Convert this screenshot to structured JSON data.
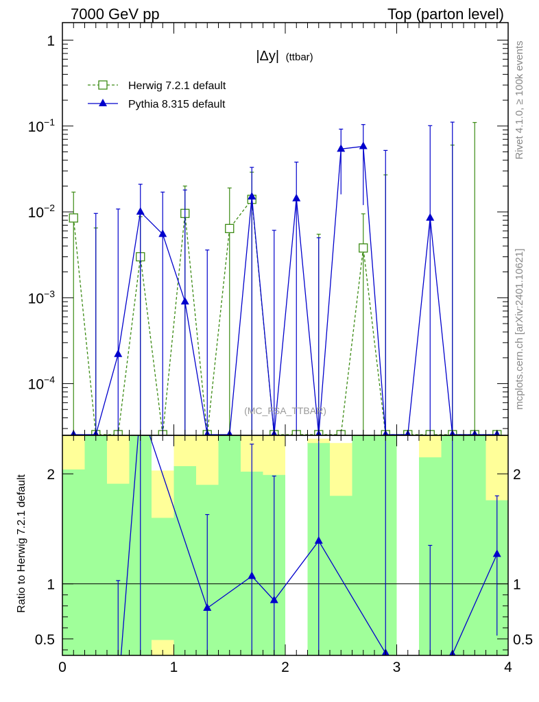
{
  "header": {
    "left": "7000 GeV pp",
    "right": "Top (parton level)"
  },
  "side_labels": {
    "rivet": "Rivet 4.1.0, ≥ 100k events",
    "mcplots": "mcplots.cern.ch [arXiv:2401.10621]"
  },
  "chart_data": [
    {
      "type": "line",
      "panel": "main",
      "title": "|Δy|",
      "title_suffix": "(ttbar)",
      "analysis_tag": "(MC_FSA_TTBAR)",
      "yscale": "log",
      "xlim": [
        0,
        4
      ],
      "ylim": [
        2.5e-05,
        1.6
      ],
      "y_ticks": [
        {
          "value": 1,
          "base": "1",
          "exp": ""
        },
        {
          "value": 0.1,
          "base": "10",
          "exp": "−1"
        },
        {
          "value": 0.01,
          "base": "10",
          "exp": "−2"
        },
        {
          "value": 0.001,
          "base": "10",
          "exp": "−3"
        },
        {
          "value": 0.0001,
          "base": "10",
          "exp": "−4"
        }
      ],
      "legend": {
        "position": "top-left"
      },
      "series": [
        {
          "name": "Herwig 7.2.1 default",
          "color": "#3b8a13",
          "style": "dashed",
          "marker": "open-square",
          "points": [
            {
              "x": 0.1,
              "y": 0.0085,
              "yhi": 0.017
            },
            {
              "x": 0.3,
              "y": 0,
              "yhi": 0.0065
            },
            {
              "x": 0.5,
              "y": 0,
              "yhi": 0
            },
            {
              "x": 0.7,
              "y": 0.003,
              "yhi": 0.0088
            },
            {
              "x": 0.9,
              "y": 0,
              "yhi": 0
            },
            {
              "x": 1.1,
              "y": 0.0096,
              "yhi": 0.02
            },
            {
              "x": 1.3,
              "y": 0,
              "yhi": 0
            },
            {
              "x": 1.5,
              "y": 0.0064,
              "yhi": 0.019
            },
            {
              "x": 1.7,
              "y": 0.014,
              "yhi": 0.029
            },
            {
              "x": 1.9,
              "y": 0,
              "yhi": 0
            },
            {
              "x": 2.1,
              "y": 0,
              "yhi": 0
            },
            {
              "x": 2.3,
              "y": 0,
              "yhi": 0.0055
            },
            {
              "x": 2.5,
              "y": 0,
              "yhi": 0
            },
            {
              "x": 2.7,
              "y": 0.0038,
              "yhi": 0.0095
            },
            {
              "x": 2.9,
              "y": 0,
              "yhi": 0.027
            },
            {
              "x": 3.1,
              "y": 0,
              "yhi": 0
            },
            {
              "x": 3.3,
              "y": 0,
              "yhi": 0
            },
            {
              "x": 3.5,
              "y": 0,
              "yhi": 0.06
            },
            {
              "x": 3.7,
              "y": 0,
              "yhi": 0.11
            },
            {
              "x": 3.9,
              "y": 0,
              "yhi": 0
            }
          ]
        },
        {
          "name": "Pythia 8.315 default",
          "color": "#0000cc",
          "style": "solid",
          "marker": "filled-triangle",
          "points": [
            {
              "x": 0.1,
              "y": 0,
              "yhi": 0
            },
            {
              "x": 0.3,
              "y": 0,
              "yhi": 0.0096
            },
            {
              "x": 0.5,
              "y": 0.00022,
              "yhi": 0.0108
            },
            {
              "x": 0.7,
              "y": 0.01,
              "yhi": 0.021
            },
            {
              "x": 0.9,
              "y": 0.0055,
              "yhi": 0.017
            },
            {
              "x": 1.1,
              "y": 0.0009,
              "yhi": 0.018
            },
            {
              "x": 1.3,
              "y": 0,
              "yhi": 0.0036
            },
            {
              "x": 1.5,
              "y": 0,
              "yhi": 0
            },
            {
              "x": 1.7,
              "y": 0.015,
              "yhi": 0.033
            },
            {
              "x": 1.9,
              "y": 0,
              "yhi": 0.0061
            },
            {
              "x": 2.1,
              "y": 0.0143,
              "yhi": 0.038
            },
            {
              "x": 2.3,
              "y": 0,
              "yhi": 0.005
            },
            {
              "x": 2.5,
              "y": 0.054,
              "yhi": 0.092
            },
            {
              "x": 2.7,
              "y": 0.058,
              "yhi": 0.104
            },
            {
              "x": 2.9,
              "y": 0,
              "yhi": 0.052
            },
            {
              "x": 3.1,
              "y": 0,
              "yhi": 0
            },
            {
              "x": 3.3,
              "y": 0.0085,
              "yhi": 0.101
            },
            {
              "x": 3.5,
              "y": 0,
              "yhi": 0.111
            },
            {
              "x": 3.7,
              "y": 0,
              "yhi": 0
            },
            {
              "x": 3.9,
              "y": 0,
              "yhi": 0
            }
          ]
        }
      ]
    },
    {
      "type": "line",
      "panel": "ratio",
      "ylabel": "Ratio to Herwig 7.2.1 default",
      "xlim": [
        0,
        4
      ],
      "ylim": [
        0.35,
        2.35
      ],
      "reference": 1,
      "x_ticks": [
        "0",
        "1",
        "2",
        "3",
        "4"
      ],
      "y_ticks": [
        "0.5",
        "1",
        "2"
      ],
      "bands": [
        {
          "x0": 0.0,
          "x1": 0.2,
          "green_top": 2.04,
          "yellow_top": 2.35
        },
        {
          "x0": 0.2,
          "x1": 0.4,
          "green_top": 2.35,
          "yellow_top": 2.35
        },
        {
          "x0": 0.4,
          "x1": 0.6,
          "green_top": 1.91,
          "yellow_top": 2.35
        },
        {
          "x0": 0.6,
          "x1": 0.8,
          "green_top": 2.35,
          "yellow_top": 2.35
        },
        {
          "x0": 0.8,
          "x1": 1.0,
          "green_top": 1.6,
          "green_bottom": 0.49,
          "yellow_top": 2.03,
          "yellow_bottom": 0.35
        },
        {
          "x0": 1.0,
          "x1": 1.2,
          "green_top": 2.07,
          "yellow_top": 2.35
        },
        {
          "x0": 1.2,
          "x1": 1.4,
          "green_top": 1.9,
          "yellow_top": 2.35
        },
        {
          "x0": 1.4,
          "x1": 1.6,
          "green_top": 2.35,
          "yellow_top": 2.35
        },
        {
          "x0": 1.6,
          "x1": 1.8,
          "green_top": 2.02,
          "yellow_top": 2.35
        },
        {
          "x0": 1.8,
          "x1": 2.0,
          "green_top": 1.99,
          "yellow_top": 2.35
        },
        {
          "x0": 2.2,
          "x1": 2.4,
          "green_top": 2.28,
          "yellow_top": 2.32
        },
        {
          "x0": 2.4,
          "x1": 2.6,
          "green_top": 1.8,
          "yellow_top": 2.28
        },
        {
          "x0": 2.6,
          "x1": 3.0,
          "green_top": 2.35,
          "yellow_top": 2.35
        },
        {
          "x0": 3.2,
          "x1": 3.4,
          "green_top": 2.15,
          "yellow_top": 2.35
        },
        {
          "x0": 3.4,
          "x1": 3.8,
          "green_top": 2.35,
          "yellow_top": 2.35
        },
        {
          "x0": 3.8,
          "x1": 4.0,
          "green_top": 1.76,
          "yellow_top": 2.35
        }
      ],
      "series": [
        {
          "name": "Pythia 8.315 default",
          "color": "#0000cc",
          "points": [
            {
              "x": 0.5,
              "y": 0.01,
              "ylo": 0.01,
              "yhi": 1.03
            },
            {
              "x": 0.7,
              "y": 2.6,
              "ylo": 0.01,
              "yhi": 2.6
            },
            {
              "x": 1.3,
              "y": 0.78,
              "ylo": 0.01,
              "yhi": 1.63
            },
            {
              "x": 1.7,
              "y": 1.07,
              "ylo": 0.01,
              "yhi": 2.27
            },
            {
              "x": 1.9,
              "y": 0.85,
              "ylo": 0.01,
              "yhi": 1.98
            },
            {
              "x": 2.3,
              "y": 1.39,
              "ylo": 0.01,
              "yhi": 2.6
            },
            {
              "x": 2.9,
              "y": 0.37,
              "ylo": 0.01,
              "yhi": 2.6
            },
            {
              "x": 3.3,
              "y": 0.01,
              "ylo": 0.01,
              "yhi": 1.35
            },
            {
              "x": 3.5,
              "y": 0.36,
              "ylo": 0.01,
              "yhi": 2.6
            },
            {
              "x": 3.9,
              "y": 1.27,
              "ylo": 0.53,
              "yhi": 1.8
            }
          ]
        }
      ]
    }
  ]
}
